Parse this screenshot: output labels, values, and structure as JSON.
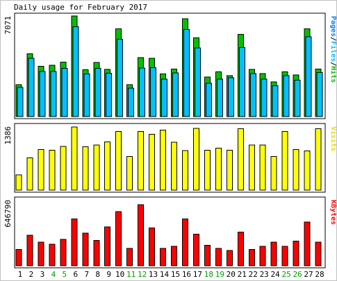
{
  "chart_data": {
    "type": "bar",
    "title": "Daily usage for February 2017",
    "categories": [
      "1",
      "2",
      "3",
      "4",
      "5",
      "6",
      "7",
      "8",
      "9",
      "10",
      "11",
      "12",
      "13",
      "14",
      "15",
      "16",
      "17",
      "18",
      "19",
      "20",
      "21",
      "22",
      "23",
      "24",
      "25",
      "26",
      "27",
      "28"
    ],
    "weekend_days": [
      "4",
      "5",
      "11",
      "12",
      "18",
      "19",
      "25",
      "26"
    ],
    "panels": [
      {
        "id": "hits",
        "max_label": "7071",
        "ymax": 7071,
        "legend": [
          {
            "text": "Pages",
            "color": "#0080ff"
          },
          {
            "text": "/",
            "color": "#000000"
          },
          {
            "text": "Files",
            "color": "#00c0ff"
          },
          {
            "text": "/",
            "color": "#000000"
          },
          {
            "text": "Hits",
            "color": "#00c000"
          }
        ],
        "series": [
          {
            "name": "Hits",
            "color": "#00c000",
            "values": [
              2250,
              4420,
              3530,
              3620,
              3830,
              7071,
              3300,
              3800,
              3320,
              6180,
              2240,
              4150,
              4090,
              2990,
              3330,
              6880,
              5540,
              2770,
              3150,
              2870,
              5770,
              3310,
              3030,
              2430,
              3150,
              2930,
              6180,
              3350
            ]
          },
          {
            "name": "Files",
            "color": "#00c0ff",
            "values": [
              2040,
              4100,
              3170,
              3170,
              3400,
              6320,
              3000,
              3400,
              3040,
              5430,
              1990,
              3420,
              3440,
              2640,
              3070,
              6130,
              4820,
              2350,
              2630,
              2730,
              4860,
              3030,
              2640,
              2170,
              2880,
              2560,
              5600,
              3100
            ]
          },
          {
            "name": "Pages",
            "color": "#0080ff",
            "values": [
              0,
              0,
              0,
              0,
              0,
              0,
              0,
              0,
              0,
              0,
              0,
              0,
              0,
              0,
              0,
              0,
              0,
              0,
              0,
              0,
              0,
              0,
              0,
              0,
              0,
              0,
              0,
              0
            ]
          }
        ]
      },
      {
        "id": "visits",
        "max_label": "1386",
        "ymax": 1386,
        "legend": [
          {
            "text": "Visits",
            "color": "#e0e000"
          }
        ],
        "series": [
          {
            "name": "Visits",
            "color": "#ffff00",
            "values": [
              330,
              700,
              880,
              870,
              950,
              1370,
              940,
              980,
              1050,
              1270,
              730,
              1270,
              1210,
              1300,
              1040,
              860,
              1340,
              870,
              910,
              870,
              1330,
              980,
              980,
              730,
              1270,
              880,
              850,
              1330
            ]
          }
        ]
      },
      {
        "id": "kbytes",
        "max_label": "646790",
        "ymax": 646790,
        "legend": [
          {
            "text": "KBytes",
            "color": "#ff0000"
          }
        ],
        "series": [
          {
            "name": "KBytes",
            "color": "#ff0000",
            "values": [
              160000,
              300000,
              230000,
              210000,
              260000,
              460000,
              320000,
              250000,
              380000,
              530000,
              170000,
              600000,
              370000,
              170000,
              190000,
              460000,
              310000,
              200000,
              170000,
              150000,
              330000,
              160000,
              190000,
              230000,
              190000,
              240000,
              430000,
              230000
            ]
          }
        ]
      }
    ]
  }
}
